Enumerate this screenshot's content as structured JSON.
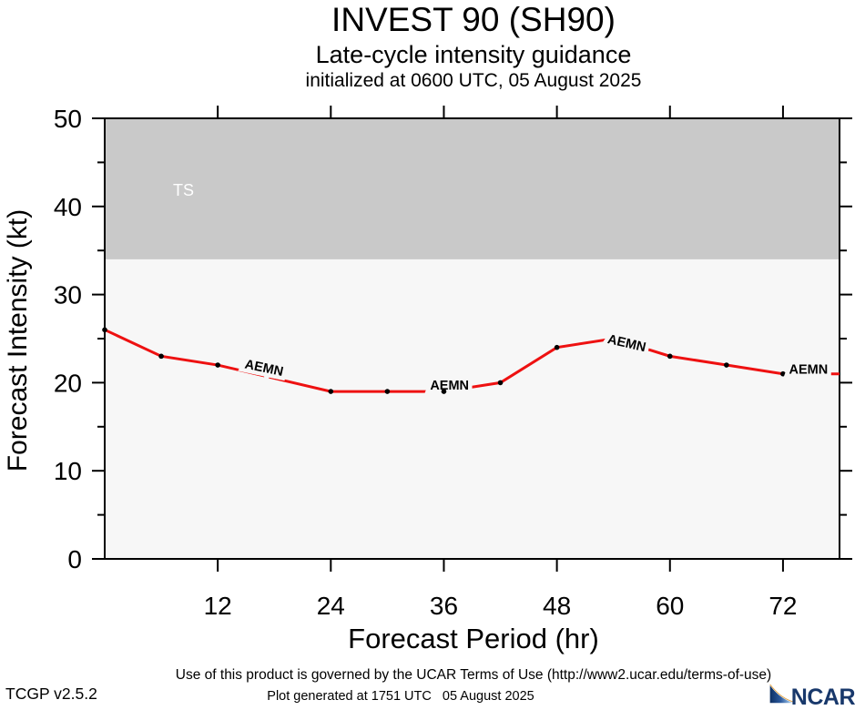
{
  "title": "INVEST 90 (SH90)",
  "subtitle": "Late-cycle intensity guidance",
  "init_line": "initialized at 0600 UTC, 05 August 2025",
  "chart_data": {
    "type": "line",
    "xlabel": "Forecast Period (hr)",
    "ylabel": "Forecast Intensity (kt)",
    "xlim": [
      0,
      78
    ],
    "ylim": [
      0,
      50
    ],
    "x_ticks": [
      12,
      24,
      36,
      48,
      60,
      72
    ],
    "y_ticks": [
      0,
      10,
      20,
      30,
      40,
      50
    ],
    "y_minor_step": 5,
    "plot_bg": "#f7f7f7",
    "series": [
      {
        "name": "AEMN",
        "color": "#ee1111",
        "x": [
          0,
          6,
          12,
          18,
          24,
          30,
          36,
          42,
          48,
          54,
          60,
          66,
          72,
          78
        ],
        "values": [
          26,
          23,
          22,
          20.5,
          19,
          19,
          19,
          20,
          24,
          25,
          23,
          22,
          21,
          21
        ],
        "marker_hours": [
          0,
          6,
          12,
          24,
          30,
          42,
          48,
          60,
          66,
          72
        ],
        "marker_hours_over_label": [
          36
        ]
      }
    ],
    "line_labels": [
      {
        "text": "AEMN",
        "hr": 16.9,
        "kt": 21.6,
        "rotate": 12
      },
      {
        "text": "AEMN",
        "hr": 36.6,
        "kt": 19.6,
        "rotate": 0
      },
      {
        "text": "AEMN",
        "hr": 55.4,
        "kt": 24.4,
        "rotate": 13
      },
      {
        "text": "AEMN",
        "hr": 74.7,
        "kt": 21.4,
        "rotate": 0
      }
    ],
    "ts_band": {
      "label": "TS",
      "from": 34,
      "to": 50,
      "color": "#c9c9c9",
      "label_color": "#ffffff"
    }
  },
  "footer": {
    "terms": "Use of this product is governed by the UCAR Terms of Use (http://www2.ucar.edu/terms-of-use)",
    "version": "TCGP v2.5.2",
    "generated": "Plot generated at 1751 UTC   05 August 2025",
    "logo_text": "NCAR"
  }
}
